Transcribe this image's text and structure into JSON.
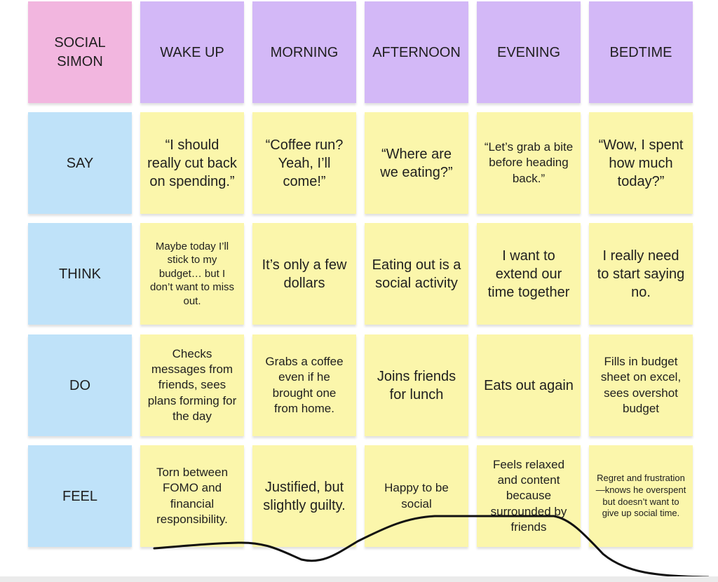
{
  "persona": "SOCIAL SIMON",
  "columns": [
    "WAKE UP",
    "MORNING",
    "AFTERNOON",
    "EVENING",
    "BEDTIME"
  ],
  "rows": [
    {
      "label": "SAY",
      "cells": [
        "“I should really cut back on spending.”",
        "“Coffee run? Yeah, I’ll come!”",
        "“Where are we eating?”",
        "“Let’s grab a bite before heading back.”",
        "“Wow, I spent how much today?”"
      ]
    },
    {
      "label": "THINK",
      "cells": [
        "Maybe today I’ll stick to my budget… but I don’t want to miss out.",
        "It’s only a few dollars",
        "Eating out is a social activity",
        "I want to extend our time together",
        "I really need to start saying no."
      ]
    },
    {
      "label": "DO",
      "cells": [
        "Checks messages from friends, sees plans forming for the day",
        "Grabs a coffee even if he brought one from home.",
        "Joins friends for lunch",
        "Eats out again",
        "Fills in budget sheet on excel, sees overshot budget"
      ]
    },
    {
      "label": "FEEL",
      "cells": [
        "Torn between FOMO and financial responsibility.",
        "Justified, but slightly guilty.",
        "Happy to be social",
        "Feels relaxed and content because surrounded by friends",
        "Regret and frustration—knows he overspent but doesn’t want to give up social time."
      ]
    }
  ],
  "colors": {
    "persona": "#f2b6df",
    "header": "#d3b8f7",
    "row_label": "#bfe2f9",
    "cell": "#fbf6ab",
    "curve": "#111111"
  }
}
